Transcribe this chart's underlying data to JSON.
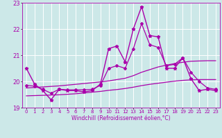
{
  "xlabel": "Windchill (Refroidissement éolien,°C)",
  "ylabel": "",
  "xlim": [
    -0.5,
    23.5
  ],
  "ylim": [
    19,
    23
  ],
  "yticks": [
    19,
    20,
    21,
    22,
    23
  ],
  "xticks": [
    0,
    1,
    2,
    3,
    4,
    5,
    6,
    7,
    8,
    9,
    10,
    11,
    12,
    13,
    14,
    15,
    16,
    17,
    18,
    19,
    20,
    21,
    22,
    23
  ],
  "bg_color": "#cce8e8",
  "line_color": "#aa00aa",
  "grid_color": "#ffffff",
  "series": [
    {
      "x": [
        0,
        1,
        2,
        3,
        4,
        5,
        6,
        7,
        8,
        9,
        10,
        11,
        12,
        13,
        14,
        15,
        16,
        17,
        18,
        19,
        20,
        21,
        22,
        23
      ],
      "y": [
        20.5,
        19.9,
        19.65,
        19.3,
        19.7,
        19.65,
        19.65,
        19.6,
        19.65,
        19.9,
        21.25,
        21.35,
        20.75,
        22.0,
        22.85,
        21.75,
        21.7,
        20.5,
        20.5,
        20.9,
        20.1,
        19.65,
        19.7,
        19.65
      ],
      "marker": "*",
      "markersize": 3.5,
      "linewidth": 1.0
    },
    {
      "x": [
        0,
        1,
        2,
        3,
        4,
        5,
        6,
        7,
        8,
        9,
        10,
        11,
        12,
        13,
        14,
        15,
        16,
        17,
        18,
        19,
        20,
        21,
        22,
        23
      ],
      "y": [
        19.85,
        19.82,
        19.7,
        19.55,
        19.7,
        19.68,
        19.68,
        19.68,
        19.7,
        19.85,
        20.5,
        20.6,
        20.5,
        21.25,
        22.2,
        21.4,
        21.3,
        20.6,
        20.65,
        20.9,
        20.35,
        20.0,
        19.75,
        19.7
      ],
      "marker": "D",
      "markersize": 2.0,
      "linewidth": 0.9
    },
    {
      "x": [
        0,
        1,
        2,
        3,
        4,
        5,
        6,
        7,
        8,
        9,
        10,
        11,
        12,
        13,
        14,
        15,
        16,
        17,
        18,
        19,
        20,
        21,
        22,
        23
      ],
      "y": [
        19.75,
        19.77,
        19.79,
        19.81,
        19.83,
        19.86,
        19.89,
        19.92,
        19.95,
        19.98,
        20.02,
        20.07,
        20.12,
        20.22,
        20.35,
        20.45,
        20.55,
        20.62,
        20.68,
        20.73,
        20.77,
        20.78,
        20.79,
        20.79
      ],
      "marker": null,
      "markersize": 0,
      "linewidth": 0.9
    },
    {
      "x": [
        0,
        1,
        2,
        3,
        4,
        5,
        6,
        7,
        8,
        9,
        10,
        11,
        12,
        13,
        14,
        15,
        16,
        17,
        18,
        19,
        20,
        21,
        22,
        23
      ],
      "y": [
        19.45,
        19.46,
        19.47,
        19.48,
        19.49,
        19.51,
        19.53,
        19.56,
        19.59,
        19.62,
        19.66,
        19.69,
        19.73,
        19.78,
        19.84,
        19.89,
        19.93,
        19.97,
        20.01,
        20.04,
        20.06,
        20.07,
        20.07,
        20.07
      ],
      "marker": null,
      "markersize": 0,
      "linewidth": 0.9
    }
  ]
}
